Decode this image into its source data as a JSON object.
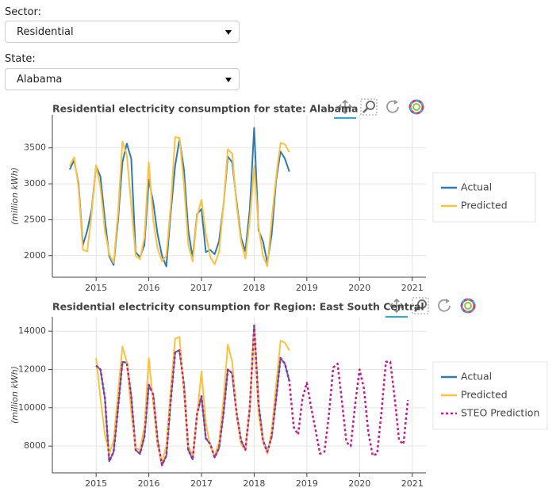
{
  "controls": {
    "sector": {
      "label": "Sector:",
      "value": "Residential"
    },
    "state": {
      "label": "State:",
      "value": "Alabama"
    }
  },
  "chart_data": [
    {
      "type": "line",
      "title": "Residential electricity consumption for state: Alabama",
      "y_label": "(million kWh)",
      "x": [
        2014.5,
        2014.583,
        2014.667,
        2014.75,
        2014.833,
        2014.917,
        2015,
        2015.083,
        2015.167,
        2015.25,
        2015.333,
        2015.417,
        2015.5,
        2015.583,
        2015.667,
        2015.75,
        2015.833,
        2015.917,
        2016,
        2016.083,
        2016.167,
        2016.25,
        2016.333,
        2016.417,
        2016.5,
        2016.583,
        2016.667,
        2016.75,
        2016.833,
        2016.917,
        2017,
        2017.083,
        2017.167,
        2017.25,
        2017.333,
        2017.417,
        2017.5,
        2017.583,
        2017.667,
        2017.75,
        2017.833,
        2017.917,
        2018,
        2018.083,
        2018.167,
        2018.25,
        2018.333,
        2018.417,
        2018.5,
        2018.583,
        2018.667
      ],
      "series": [
        {
          "name": "Actual",
          "color": "#2c7bb6",
          "values": [
            3200,
            3330,
            3000,
            2150,
            2350,
            2650,
            3250,
            3100,
            2500,
            1990,
            1870,
            2500,
            3300,
            3560,
            3350,
            2050,
            1980,
            2150,
            3060,
            2750,
            2300,
            2000,
            1850,
            2600,
            3250,
            3620,
            3200,
            2350,
            1970,
            2580,
            2650,
            2050,
            2080,
            2020,
            2200,
            2700,
            3380,
            3300,
            2750,
            2250,
            2060,
            2650,
            3780,
            2350,
            2200,
            1900,
            2300,
            3050,
            3450,
            3350,
            3170
          ]
        },
        {
          "name": "Predicted",
          "color": "#fdc13f",
          "values": [
            3250,
            3370,
            2950,
            2080,
            2060,
            2600,
            3260,
            2950,
            2350,
            2020,
            1900,
            2600,
            3590,
            3400,
            2700,
            2000,
            1950,
            2250,
            3300,
            2500,
            2100,
            1920,
            2000,
            2700,
            3650,
            3640,
            3000,
            2150,
            1920,
            2550,
            2780,
            2300,
            1980,
            1880,
            2050,
            2700,
            3480,
            3420,
            2700,
            2200,
            1960,
            2500,
            3250,
            2400,
            2000,
            1850,
            2500,
            3100,
            3570,
            3550,
            3440
          ]
        }
      ],
      "xlim": [
        2014.17,
        2021.26
      ],
      "xticks": [
        2015,
        2016,
        2017,
        2018,
        2019,
        2020,
        2021
      ],
      "ylim": [
        1700,
        3960
      ],
      "yticks": [
        2000,
        2500,
        3000,
        3500
      ],
      "grid": true,
      "legend": "right"
    },
    {
      "type": "line",
      "title": "Residential electricity consumption for Region: East South Central",
      "y_label": "(million kWh)",
      "x": [
        2015,
        2015.083,
        2015.167,
        2015.25,
        2015.333,
        2015.417,
        2015.5,
        2015.583,
        2015.667,
        2015.75,
        2015.833,
        2015.917,
        2016,
        2016.083,
        2016.167,
        2016.25,
        2016.333,
        2016.417,
        2016.5,
        2016.583,
        2016.667,
        2016.75,
        2016.833,
        2016.917,
        2017,
        2017.083,
        2017.167,
        2017.25,
        2017.333,
        2017.417,
        2017.5,
        2017.583,
        2017.667,
        2017.75,
        2017.833,
        2017.917,
        2018,
        2018.083,
        2018.167,
        2018.25,
        2018.333,
        2018.417,
        2018.5,
        2018.583,
        2018.667,
        2018.75,
        2018.833,
        2018.917,
        2019,
        2019.083,
        2019.167,
        2019.25,
        2019.333,
        2019.417,
        2019.5,
        2019.583,
        2019.667,
        2019.75,
        2019.833,
        2019.917,
        2020,
        2020.083,
        2020.167,
        2020.25,
        2020.333,
        2020.417,
        2020.5,
        2020.583,
        2020.667,
        2020.75,
        2020.833,
        2020.917
      ],
      "series": [
        {
          "name": "Actual",
          "color": "#2c7bb6",
          "values": [
            12200,
            12000,
            10500,
            7200,
            7700,
            10000,
            12400,
            12350,
            10600,
            7800,
            7600,
            8500,
            11200,
            10700,
            8300,
            7000,
            7500,
            10400,
            12900,
            13000,
            11200,
            7800,
            7300,
            9700,
            10600,
            8400,
            8100,
            7400,
            7900,
            9700,
            12000,
            11800,
            9700,
            8300,
            7800,
            10000,
            14300,
            10200,
            8300,
            7700,
            8500,
            10500,
            12600,
            12300,
            11400,
            null,
            null,
            null,
            null,
            null,
            null,
            null,
            null,
            null,
            null,
            null,
            null,
            null,
            null,
            null,
            null,
            null,
            null,
            null,
            null,
            null,
            null,
            null,
            null,
            null,
            null,
            null
          ]
        },
        {
          "name": "Predicted",
          "color": "#fdc13f",
          "values": [
            12600,
            10500,
            8600,
            7600,
            8300,
            10800,
            13200,
            12400,
            9800,
            7900,
            7800,
            9000,
            12600,
            10300,
            8000,
            7200,
            8000,
            11000,
            13600,
            13700,
            10800,
            8000,
            7500,
            9600,
            11900,
            9200,
            8000,
            7500,
            8200,
            10400,
            13300,
            12400,
            9600,
            8100,
            7800,
            10200,
            13900,
            9700,
            8200,
            7600,
            8800,
            11200,
            13500,
            13400,
            13000,
            null,
            null,
            null,
            null,
            null,
            null,
            null,
            null,
            null,
            null,
            null,
            null,
            null,
            null,
            null,
            null,
            null,
            null,
            null,
            null,
            null,
            null,
            null,
            null,
            null,
            null,
            null
          ]
        },
        {
          "name": "STEO Prediction",
          "color": "#c51b8a",
          "style": "dashed",
          "values": [
            12200,
            12000,
            10500,
            7200,
            7700,
            10000,
            12400,
            12350,
            10600,
            7800,
            7600,
            8500,
            11200,
            10700,
            8300,
            7000,
            7500,
            10400,
            12900,
            13000,
            11200,
            7800,
            7300,
            9700,
            10600,
            8400,
            8100,
            7400,
            7900,
            9700,
            12000,
            11800,
            9700,
            8300,
            7800,
            10000,
            14300,
            10200,
            8300,
            7700,
            8500,
            10500,
            12600,
            12300,
            11400,
            9000,
            8600,
            10500,
            11300,
            10000,
            8800,
            7600,
            7700,
            9600,
            12100,
            12300,
            10300,
            8200,
            8000,
            10200,
            12000,
            11000,
            8700,
            7500,
            7600,
            9800,
            12400,
            12400,
            10500,
            8300,
            8100,
            10400
          ]
        }
      ],
      "xlim": [
        2014.17,
        2021.26
      ],
      "xticks": [
        2015,
        2016,
        2017,
        2018,
        2019,
        2020,
        2021
      ],
      "ylim": [
        6600,
        14750
      ],
      "yticks": [
        8000,
        10000,
        12000,
        14000
      ],
      "grid": true,
      "legend": "right"
    }
  ]
}
